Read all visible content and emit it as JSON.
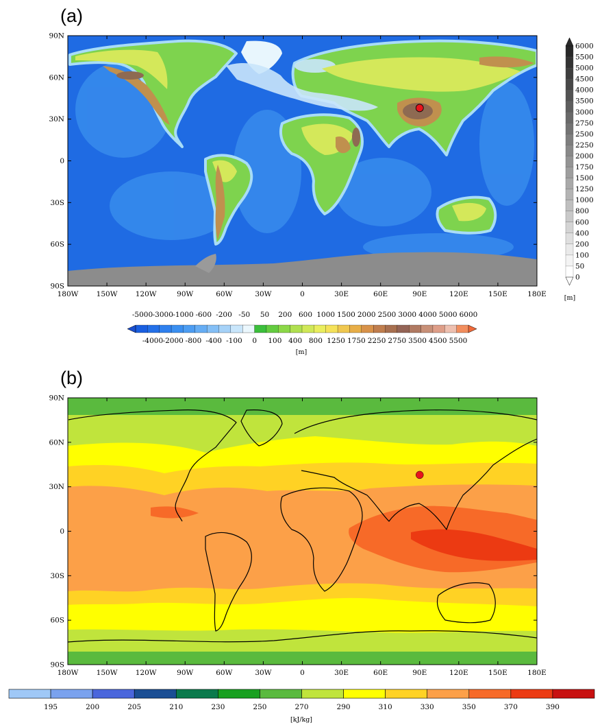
{
  "panels": [
    {
      "id": "a",
      "label": "(a)",
      "field": "topography",
      "marker": {
        "lon": 90,
        "lat": 38,
        "color": "#e8141c"
      },
      "lat_ticks": [
        "90N",
        "60N",
        "30N",
        "0",
        "30S",
        "60S",
        "90S"
      ],
      "lon_ticks": [
        "180W",
        "150W",
        "120W",
        "90W",
        "60W",
        "30W",
        "0",
        "30E",
        "60E",
        "90E",
        "120E",
        "150E",
        "180E"
      ]
    },
    {
      "id": "b",
      "label": "(b)",
      "field": "energy",
      "marker": {
        "lon": 90,
        "lat": 38,
        "color": "#e8141c"
      },
      "lat_ticks": [
        "90N",
        "60N",
        "30N",
        "0",
        "30S",
        "60S",
        "90S"
      ],
      "lon_ticks": [
        "180W",
        "150W",
        "120W",
        "90W",
        "60W",
        "30W",
        "0",
        "30E",
        "60E",
        "90E",
        "120E",
        "150E",
        "180E"
      ]
    }
  ],
  "colorbar_h_a": {
    "labels_top": [
      "-5000",
      "-3000",
      "-1000",
      "-600",
      "-200",
      "-50",
      "50",
      "200",
      "600",
      "1000",
      "1500",
      "2000",
      "2500",
      "3000",
      "4000",
      "5000",
      "6000"
    ],
    "labels_bottom": [
      "-4000",
      "-2000",
      "-800",
      "-400",
      "-100",
      "0",
      "100",
      "400",
      "800",
      "1250",
      "1750",
      "2250",
      "2750",
      "3500",
      "4500",
      "5500"
    ],
    "unit": "[m]",
    "colors": [
      "#1a5fe0",
      "#2470e8",
      "#2f80ee",
      "#3b8ff0",
      "#4d9df2",
      "#66adf4",
      "#84bff6",
      "#a6d2f8",
      "#c9e6fb",
      "#ebf7fd",
      "#3cbf3c",
      "#64cc40",
      "#8cd848",
      "#b0e050",
      "#d0e858",
      "#eaee5e",
      "#f5e25a",
      "#f0c850",
      "#e8ae48",
      "#d8924a",
      "#c07e4e",
      "#a87050",
      "#946456",
      "#b07a62",
      "#c89078",
      "#de9e88",
      "#eec0b0",
      "#f28e5e"
    ]
  },
  "colorbar_v_a": {
    "labels": [
      "6000",
      "5500",
      "5000",
      "4500",
      "4000",
      "3500",
      "3000",
      "2750",
      "2500",
      "2250",
      "2000",
      "1750",
      "1500",
      "1250",
      "1000",
      "800",
      "600",
      "400",
      "200",
      "100",
      "50",
      "0"
    ],
    "unit": "[m]"
  },
  "colorbar_b": {
    "labels": [
      "195",
      "200",
      "205",
      "210",
      "230",
      "250",
      "270",
      "290",
      "310",
      "330",
      "350",
      "370",
      "390"
    ],
    "unit": "[kJ/kg]",
    "colors": [
      "#9fc8f6",
      "#7aa2ee",
      "#4a66dc",
      "#1a4e94",
      "#0a7a4c",
      "#18a020",
      "#5aba3e",
      "#c0e43c",
      "#ffff00",
      "#ffd224",
      "#fca048",
      "#f76a28",
      "#ec3a12",
      "#c81010"
    ]
  },
  "colors": {
    "ocean_deep": "#1f6be3",
    "ocean_mid": "#3b90ee",
    "ocean_shelf": "#9fd2f6",
    "land_low": "#7ed34e",
    "land_mid": "#d4e85a",
    "land_high": "#c0904e",
    "land_peak": "#8e6a52",
    "ice": "#8c8c8c",
    "coast": "#000000"
  }
}
